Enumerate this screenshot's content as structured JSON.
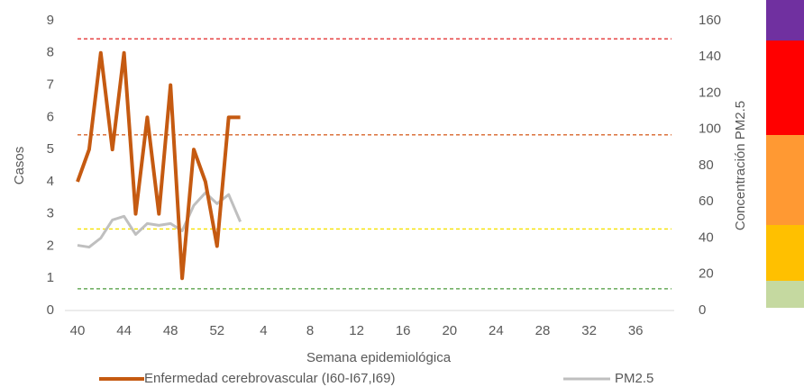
{
  "chart_data": {
    "type": "line",
    "x_label": "Semana epidemiológica",
    "y_label": "Casos",
    "y2_label": "Concentración PM2.5",
    "categories": [
      "40",
      null,
      null,
      null,
      "44",
      null,
      null,
      null,
      "48",
      null,
      null,
      null,
      "52",
      null,
      null,
      null,
      "4",
      null,
      null,
      null,
      "8",
      null,
      null,
      null,
      "12",
      null,
      null,
      null,
      "16",
      null,
      null,
      null,
      "20",
      null,
      null,
      null,
      "24",
      null,
      null,
      null,
      "28",
      null,
      null,
      null,
      "32",
      null,
      null,
      null,
      "36",
      null,
      null,
      null
    ],
    "series": [
      {
        "name": "Enfermedad cerebrovascular (I60-I67,I69)",
        "color": "#c55a11",
        "values": [
          4,
          5,
          8,
          5,
          8,
          3,
          6,
          3,
          7,
          1,
          5,
          4,
          2,
          6,
          6,
          null,
          null,
          null,
          null,
          null,
          null,
          null,
          null,
          null,
          null,
          null,
          null,
          null,
          null,
          null,
          null,
          null,
          null,
          null,
          null,
          null,
          null,
          null,
          null,
          null,
          null,
          null,
          null,
          null,
          null,
          null,
          null,
          null,
          null,
          null,
          null,
          null
        ]
      },
      {
        "name": "PM2.5",
        "color": "#bfbfbf",
        "axis": "y2",
        "values": [
          36,
          35,
          40,
          50,
          52,
          42,
          48,
          47,
          48,
          44,
          58,
          65,
          59,
          64,
          49,
          null,
          null,
          null,
          null,
          null,
          null,
          null,
          null,
          null,
          null,
          null,
          null,
          null,
          null,
          null,
          null,
          null,
          null,
          null,
          null,
          null,
          null,
          null,
          null,
          null,
          null,
          null,
          null,
          null,
          null,
          null,
          null,
          null,
          null,
          null,
          null,
          null
        ]
      }
    ],
    "ylim": [
      0,
      9
    ],
    "yticks": [
      0,
      1,
      2,
      3,
      4,
      5,
      6,
      7,
      8,
      9
    ],
    "y2lim": [
      0,
      160
    ],
    "y2ticks": [
      0,
      20,
      40,
      60,
      80,
      100,
      120,
      140,
      160
    ],
    "reference_lines": [
      {
        "value": 150,
        "color": "#e02020",
        "axis": "y2"
      },
      {
        "value": 97,
        "color": "#d8642a",
        "axis": "y2"
      },
      {
        "value": 45,
        "color": "#f5e100",
        "axis": "y2"
      },
      {
        "value": 12,
        "color": "#4a9a3a",
        "axis": "y2"
      }
    ],
    "legend": "bottom"
  }
}
